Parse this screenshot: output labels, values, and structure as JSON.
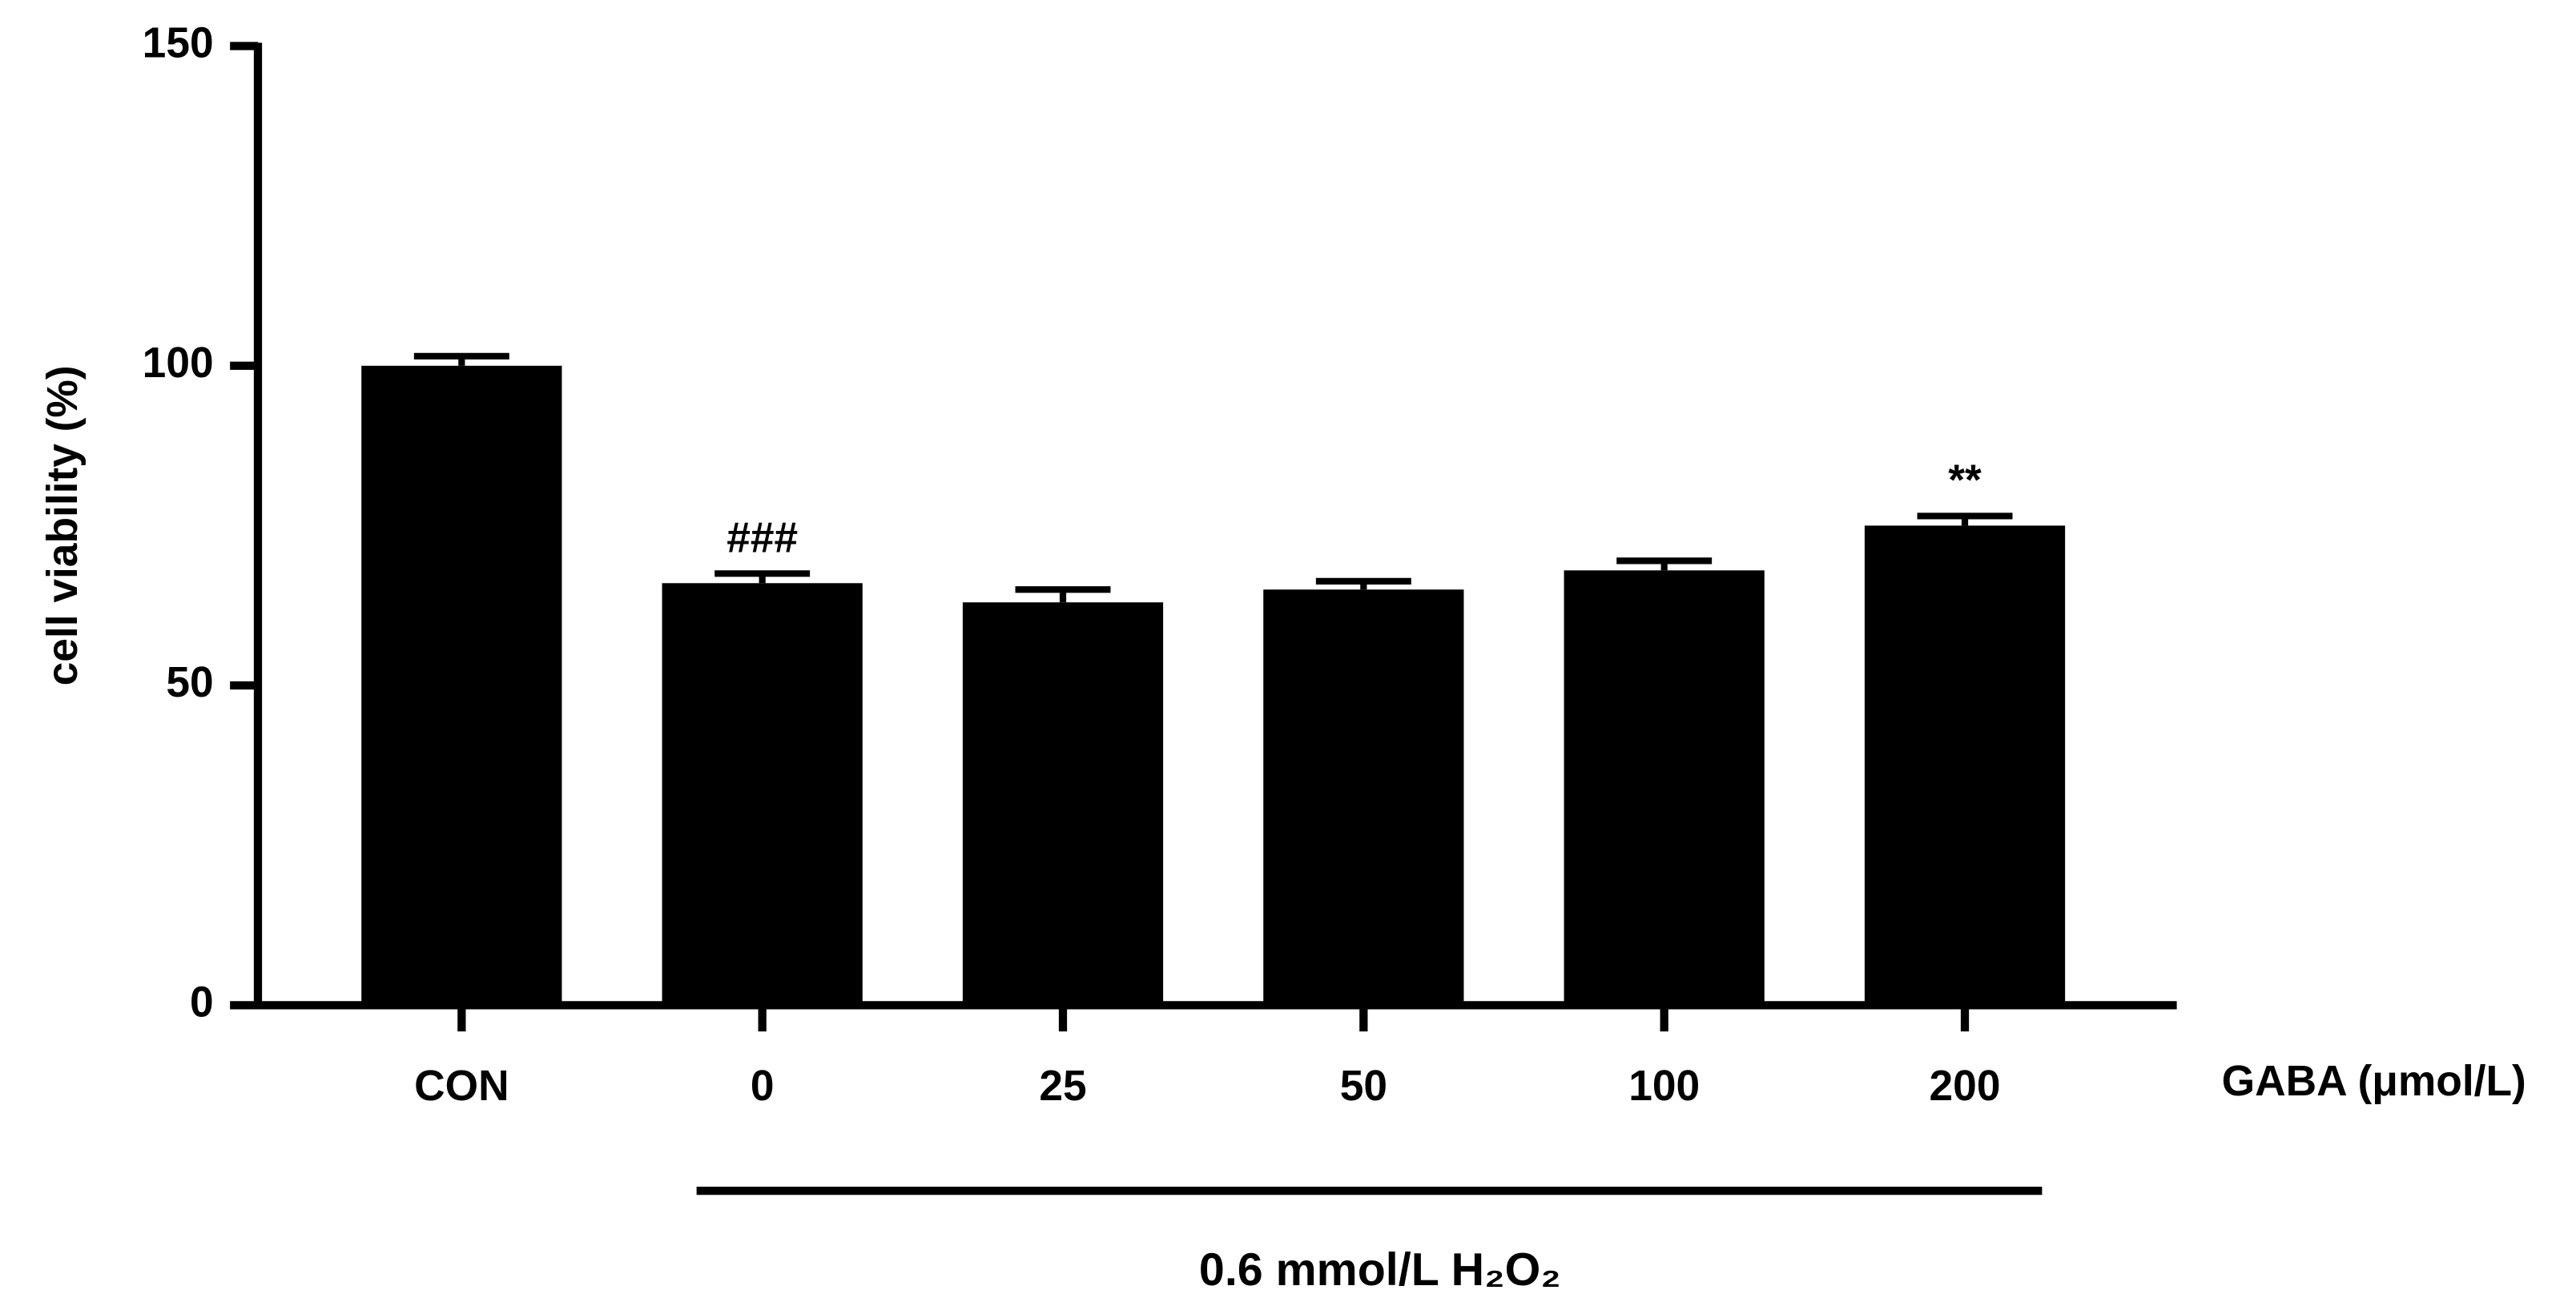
{
  "chart_data": {
    "type": "bar",
    "y_label": "cell viability (%)",
    "x_label": "GABA (μmol/L)",
    "categories": [
      "CON",
      "0",
      "25",
      "50",
      "100",
      "200"
    ],
    "values": [
      100,
      66,
      63,
      65,
      68,
      75
    ],
    "errors": [
      1.5,
      1.5,
      2,
      1.3,
      1.5,
      1.5
    ],
    "color": "#000000",
    "ylim": [
      0,
      150
    ],
    "yticks": [
      0,
      50,
      100,
      150
    ],
    "annotations": [
      {
        "category": "0",
        "text": "###"
      },
      {
        "category": "200",
        "text": "**"
      }
    ],
    "group": {
      "label": "0.6 mmol/L H₂O₂",
      "from": "0",
      "to": "200"
    }
  }
}
